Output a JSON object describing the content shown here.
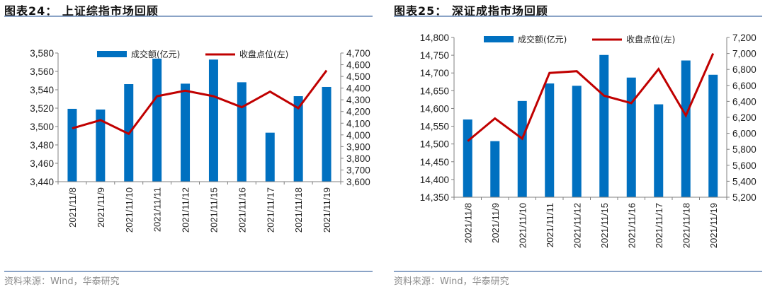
{
  "colors": {
    "bar": "#0070c0",
    "line": "#c00000",
    "rule": "#8aa3c6",
    "axis": "#808080",
    "source_text": "#8c8c8c"
  },
  "panels": [
    {
      "title": "图表24：  上证综指市场回顾",
      "source": "资料来源：Wind，华泰研究"
    },
    {
      "title": "图表25：  深证成指市场回顾",
      "source": "资料来源：Wind，华泰研究"
    }
  ],
  "chart_data": [
    {
      "type": "bar+line",
      "title": "图表24：上证综指市场回顾",
      "categories": [
        "2021/11/8",
        "2021/11/9",
        "2021/11/10",
        "2021/11/11",
        "2021/11/12",
        "2021/11/15",
        "2021/11/16",
        "2021/11/17",
        "2021/11/18",
        "2021/11/19"
      ],
      "series": [
        {
          "name": "成交额(亿元)",
          "type": "bar",
          "axis": "right",
          "values": [
            4223,
            4217,
            4434,
            4652,
            4438,
            4644,
            4450,
            4019,
            4331,
            4410
          ]
        },
        {
          "name": "收盘点位(左)",
          "type": "line",
          "axis": "left",
          "values": [
            3498,
            3507,
            3492,
            3533,
            3539,
            3533,
            3521,
            3538,
            3520,
            3561
          ]
        }
      ],
      "left_axis": {
        "min": 3440,
        "max": 3580,
        "step": 20,
        "ticks": [
          "3,440",
          "3,460",
          "3,480",
          "3,500",
          "3,520",
          "3,540",
          "3,560",
          "3,580"
        ]
      },
      "right_axis": {
        "min": 3600,
        "max": 4700,
        "step": 100,
        "ticks": [
          "3,600",
          "3,700",
          "3,800",
          "3,900",
          "4,000",
          "4,100",
          "4,200",
          "4,300",
          "4,400",
          "4,500",
          "4,600",
          "4,700"
        ]
      },
      "legend": [
        "成交额(亿元)",
        "收盘点位(左)"
      ],
      "legend_position": "top",
      "grid": false
    },
    {
      "type": "bar+line",
      "title": "图表25：深证成指市场回顾",
      "categories": [
        "2021/11/8",
        "2021/11/9",
        "2021/11/10",
        "2021/11/11",
        "2021/11/12",
        "2021/11/15",
        "2021/11/16",
        "2021/11/17",
        "2021/11/18",
        "2021/11/19"
      ],
      "series": [
        {
          "name": "成交额(亿元)",
          "type": "bar",
          "axis": "right",
          "values": [
            6173,
            5902,
            6405,
            6624,
            6595,
            6981,
            6698,
            6363,
            6912,
            6733
          ]
        },
        {
          "name": "收盘点位(左)",
          "type": "line",
          "axis": "left",
          "values": [
            14508,
            14572,
            14515,
            14700,
            14705,
            14636,
            14615,
            14711,
            14580,
            14755
          ]
        }
      ],
      "left_axis": {
        "min": 14350,
        "max": 14800,
        "step": 50,
        "ticks": [
          "14,350",
          "14,400",
          "14,450",
          "14,500",
          "14,550",
          "14,600",
          "14,650",
          "14,700",
          "14,750",
          "14,800"
        ]
      },
      "right_axis": {
        "min": 5200,
        "max": 7200,
        "step": 200,
        "ticks": [
          "5,200",
          "5,400",
          "5,600",
          "5,800",
          "6,000",
          "6,200",
          "6,400",
          "6,600",
          "6,800",
          "7,000",
          "7,200"
        ]
      },
      "legend": [
        "成交额(亿元)",
        "收盘点位(左)"
      ],
      "legend_position": "top",
      "grid": false
    }
  ]
}
